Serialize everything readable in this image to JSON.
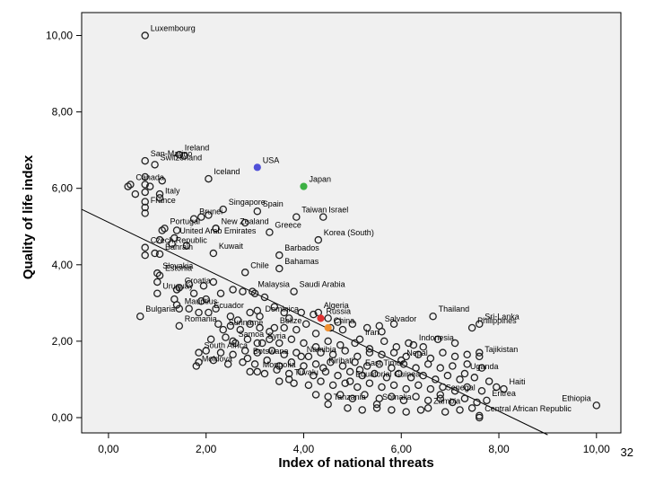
{
  "slide_number": "32",
  "chart_data": {
    "type": "scatter",
    "xlabel": "Index of national threats",
    "ylabel": "Quality of life index",
    "xlim": [
      -0.55,
      10.5
    ],
    "ylim": [
      -0.4,
      10.6
    ],
    "xticks": [
      0,
      2,
      4,
      6,
      8,
      10
    ],
    "yticks": [
      0,
      2,
      4,
      6,
      8,
      10
    ],
    "xtick_labels": [
      "0,00",
      "2,00",
      "4,00",
      "6,00",
      "8,00",
      "10,00"
    ],
    "ytick_labels": [
      "0,00",
      "2,00",
      "4,00",
      "6,00",
      "8,00",
      "10,00"
    ],
    "grid": false,
    "plot_background": "#f0f0f0",
    "fit_line": {
      "start": [
        -0.55,
        5.45
      ],
      "end": [
        9.0,
        -0.45
      ]
    },
    "highlight_colors": {
      "USA": "#5050d8",
      "Japan": "#3cb043",
      "red": "#e03030",
      "orange": "#f09030"
    },
    "labeled_points": [
      {
        "name": "Luxembourg",
        "x": 0.75,
        "y": 10.0
      },
      {
        "name": "Ireland",
        "x": 1.45,
        "y": 6.88
      },
      {
        "name": "San-Marino",
        "x": 0.75,
        "y": 6.72
      },
      {
        "name": "Switzerland",
        "x": 0.95,
        "y": 6.62
      },
      {
        "name": "Iceland",
        "x": 2.05,
        "y": 6.25
      },
      {
        "name": "USA",
        "x": 3.05,
        "y": 6.55,
        "color": "#5050d8",
        "filled": true
      },
      {
        "name": "Japan",
        "x": 4.0,
        "y": 6.05,
        "color": "#3cb043",
        "filled": true
      },
      {
        "name": "Canada",
        "x": 0.45,
        "y": 6.1
      },
      {
        "name": "Italy",
        "x": 1.05,
        "y": 5.75
      },
      {
        "name": "France",
        "x": 0.75,
        "y": 5.5
      },
      {
        "name": "Singapore",
        "x": 2.35,
        "y": 5.45
      },
      {
        "name": "Spain",
        "x": 3.05,
        "y": 5.4
      },
      {
        "name": "Taiwan",
        "x": 3.85,
        "y": 5.25
      },
      {
        "name": "Israel",
        "x": 4.4,
        "y": 5.25
      },
      {
        "name": "Brunei",
        "x": 1.75,
        "y": 5.2
      },
      {
        "name": "New Zealand",
        "x": 2.2,
        "y": 4.95
      },
      {
        "name": "Greece",
        "x": 3.3,
        "y": 4.85
      },
      {
        "name": "Portugal",
        "x": 1.15,
        "y": 4.95
      },
      {
        "name": "United Arab Emirates",
        "x": 1.35,
        "y": 4.7
      },
      {
        "name": "Korea (South)",
        "x": 4.3,
        "y": 4.65
      },
      {
        "name": "Czech Republic",
        "x": 0.75,
        "y": 4.45
      },
      {
        "name": "Bahrain",
        "x": 1.05,
        "y": 4.28
      },
      {
        "name": "Kuwait",
        "x": 2.15,
        "y": 4.3
      },
      {
        "name": "Barbados",
        "x": 3.5,
        "y": 4.25
      },
      {
        "name": "Bahamas",
        "x": 3.5,
        "y": 3.9
      },
      {
        "name": "Slovakia",
        "x": 1.0,
        "y": 3.78
      },
      {
        "name": "Estonia",
        "x": 1.05,
        "y": 3.72
      },
      {
        "name": "Chile",
        "x": 2.8,
        "y": 3.8
      },
      {
        "name": "Croatia",
        "x": 1.45,
        "y": 3.4
      },
      {
        "name": "Saudi Arabia",
        "x": 3.8,
        "y": 3.3
      },
      {
        "name": "Uruguay",
        "x": 1.0,
        "y": 3.25
      },
      {
        "name": "Malaysia",
        "x": 2.95,
        "y": 3.3
      },
      {
        "name": "Mauritius",
        "x": 1.45,
        "y": 2.85
      },
      {
        "name": "Ecuador",
        "x": 2.05,
        "y": 2.75
      },
      {
        "name": "Algeria",
        "x": 4.3,
        "y": 2.75
      },
      {
        "name": "Russia",
        "x": 4.35,
        "y": 2.6,
        "color": "#e03030",
        "filled": true
      },
      {
        "name": "Thailand",
        "x": 6.65,
        "y": 2.65
      },
      {
        "name": "Sri-Lanka",
        "x": 7.6,
        "y": 2.45
      },
      {
        "name": "Dominica",
        "x": 3.1,
        "y": 2.65
      },
      {
        "name": "Bulgaria",
        "x": 0.65,
        "y": 2.65
      },
      {
        "name": "Romania",
        "x": 1.45,
        "y": 2.4
      },
      {
        "name": "Belize",
        "x": 3.4,
        "y": 2.35
      },
      {
        "name": "China",
        "x": 4.5,
        "y": 2.35,
        "color": "#f09030",
        "filled": true
      },
      {
        "name": "Salvador",
        "x": 5.55,
        "y": 2.4
      },
      {
        "name": "Suriname",
        "x": 2.35,
        "y": 2.3
      },
      {
        "name": "Iran",
        "x": 5.15,
        "y": 2.05
      },
      {
        "name": "Indonesia",
        "x": 6.25,
        "y": 1.9
      },
      {
        "name": "Philippines",
        "x": 7.45,
        "y": 2.35
      },
      {
        "name": "Samoa",
        "x": 2.55,
        "y": 2.0
      },
      {
        "name": "Syria",
        "x": 3.15,
        "y": 1.95
      },
      {
        "name": "South Africa",
        "x": 1.85,
        "y": 1.7
      },
      {
        "name": "Namibia",
        "x": 3.95,
        "y": 1.6
      },
      {
        "name": "Tajikistan",
        "x": 7.6,
        "y": 1.6
      },
      {
        "name": "Botswana",
        "x": 2.85,
        "y": 1.55
      },
      {
        "name": "Nepal",
        "x": 6.0,
        "y": 1.5
      },
      {
        "name": "Moldova",
        "x": 1.8,
        "y": 1.35
      },
      {
        "name": "Kiribati",
        "x": 4.4,
        "y": 1.3
      },
      {
        "name": "East Timor",
        "x": 5.15,
        "y": 1.25
      },
      {
        "name": "Mongolia",
        "x": 3.05,
        "y": 1.2
      },
      {
        "name": "Uganda",
        "x": 7.3,
        "y": 1.15
      },
      {
        "name": "Tuvalu",
        "x": 3.7,
        "y": 1.0
      },
      {
        "name": "Equatorial Guinea",
        "x": 4.95,
        "y": 0.95
      },
      {
        "name": "Haiti",
        "x": 8.1,
        "y": 0.75
      },
      {
        "name": "Senegal",
        "x": 6.8,
        "y": 0.6
      },
      {
        "name": "Ethiopia",
        "x": 10.0,
        "y": 0.32
      },
      {
        "name": "Eritrea",
        "x": 7.75,
        "y": 0.45
      },
      {
        "name": "Tanzania",
        "x": 4.5,
        "y": 0.35
      },
      {
        "name": "Somalia",
        "x": 5.5,
        "y": 0.35
      },
      {
        "name": "Zambia",
        "x": 6.55,
        "y": 0.25
      },
      {
        "name": "Central African Republic",
        "x": 7.6,
        "y": 0.05
      }
    ],
    "unlabeled_points": [
      [
        0.75,
        6.3
      ],
      [
        0.75,
        6.1
      ],
      [
        0.75,
        5.9
      ],
      [
        0.4,
        6.05
      ],
      [
        0.55,
        5.85
      ],
      [
        0.75,
        5.65
      ],
      [
        0.85,
        6.05
      ],
      [
        1.1,
        6.2
      ],
      [
        1.05,
        5.85
      ],
      [
        0.75,
        5.35
      ],
      [
        1.55,
        6.85
      ],
      [
        2.05,
        5.3
      ],
      [
        1.9,
        5.25
      ],
      [
        1.1,
        4.9
      ],
      [
        1.4,
        4.9
      ],
      [
        1.05,
        4.65
      ],
      [
        0.75,
        4.25
      ],
      [
        1.3,
        4.55
      ],
      [
        1.6,
        4.5
      ],
      [
        2.2,
        4.95
      ],
      [
        2.8,
        5.1
      ],
      [
        0.95,
        4.3
      ],
      [
        2.15,
        3.55
      ],
      [
        1.95,
        3.45
      ],
      [
        1.4,
        3.35
      ],
      [
        1.0,
        3.55
      ],
      [
        1.65,
        3.5
      ],
      [
        1.75,
        3.25
      ],
      [
        1.35,
        3.1
      ],
      [
        1.9,
        3.05
      ],
      [
        2.0,
        3.1
      ],
      [
        2.3,
        3.25
      ],
      [
        2.55,
        3.35
      ],
      [
        2.75,
        3.3
      ],
      [
        3.0,
        3.25
      ],
      [
        3.2,
        3.15
      ],
      [
        1.4,
        2.95
      ],
      [
        1.65,
        2.85
      ],
      [
        1.85,
        2.75
      ],
      [
        2.2,
        2.85
      ],
      [
        2.5,
        2.65
      ],
      [
        2.65,
        2.55
      ],
      [
        2.9,
        2.75
      ],
      [
        3.05,
        2.8
      ],
      [
        3.4,
        2.9
      ],
      [
        3.6,
        2.75
      ],
      [
        3.7,
        2.6
      ],
      [
        3.95,
        2.75
      ],
      [
        4.2,
        2.7
      ],
      [
        4.5,
        2.6
      ],
      [
        4.7,
        2.5
      ],
      [
        2.25,
        2.45
      ],
      [
        2.5,
        2.4
      ],
      [
        2.7,
        2.3
      ],
      [
        2.9,
        2.45
      ],
      [
        3.1,
        2.35
      ],
      [
        3.3,
        2.25
      ],
      [
        3.6,
        2.35
      ],
      [
        3.85,
        2.3
      ],
      [
        4.05,
        2.45
      ],
      [
        4.25,
        2.2
      ],
      [
        4.55,
        2.35
      ],
      [
        4.8,
        2.3
      ],
      [
        5.0,
        2.45
      ],
      [
        5.3,
        2.35
      ],
      [
        5.6,
        2.25
      ],
      [
        5.85,
        2.45
      ],
      [
        2.1,
        2.05
      ],
      [
        2.4,
        2.1
      ],
      [
        2.6,
        1.95
      ],
      [
        2.85,
        2.05
      ],
      [
        3.05,
        1.95
      ],
      [
        3.3,
        2.05
      ],
      [
        3.5,
        1.95
      ],
      [
        3.75,
        2.05
      ],
      [
        4.0,
        1.95
      ],
      [
        4.25,
        1.85
      ],
      [
        4.5,
        2.0
      ],
      [
        4.75,
        1.9
      ],
      [
        5.05,
        1.95
      ],
      [
        5.35,
        1.8
      ],
      [
        5.65,
        2.0
      ],
      [
        5.9,
        1.85
      ],
      [
        6.15,
        1.95
      ],
      [
        6.45,
        1.85
      ],
      [
        6.75,
        2.05
      ],
      [
        7.1,
        1.95
      ],
      [
        2.0,
        1.75
      ],
      [
        2.3,
        1.7
      ],
      [
        2.55,
        1.65
      ],
      [
        2.8,
        1.75
      ],
      [
        3.05,
        1.7
      ],
      [
        3.35,
        1.75
      ],
      [
        3.6,
        1.65
      ],
      [
        3.85,
        1.7
      ],
      [
        4.1,
        1.6
      ],
      [
        4.35,
        1.7
      ],
      [
        4.6,
        1.65
      ],
      [
        4.85,
        1.75
      ],
      [
        5.1,
        1.6
      ],
      [
        5.35,
        1.7
      ],
      [
        5.6,
        1.65
      ],
      [
        5.85,
        1.7
      ],
      [
        6.1,
        1.6
      ],
      [
        6.35,
        1.65
      ],
      [
        6.6,
        1.55
      ],
      [
        6.85,
        1.7
      ],
      [
        7.1,
        1.6
      ],
      [
        7.35,
        1.65
      ],
      [
        7.6,
        1.7
      ],
      [
        1.85,
        1.45
      ],
      [
        2.15,
        1.5
      ],
      [
        2.45,
        1.4
      ],
      [
        2.75,
        1.45
      ],
      [
        3.0,
        1.4
      ],
      [
        3.25,
        1.5
      ],
      [
        3.5,
        1.35
      ],
      [
        3.75,
        1.45
      ],
      [
        4.0,
        1.35
      ],
      [
        4.25,
        1.4
      ],
      [
        4.55,
        1.45
      ],
      [
        4.8,
        1.35
      ],
      [
        5.05,
        1.45
      ],
      [
        5.3,
        1.35
      ],
      [
        5.55,
        1.4
      ],
      [
        5.8,
        1.3
      ],
      [
        6.05,
        1.4
      ],
      [
        6.3,
        1.3
      ],
      [
        6.55,
        1.4
      ],
      [
        6.8,
        1.3
      ],
      [
        7.05,
        1.35
      ],
      [
        7.35,
        1.4
      ],
      [
        7.65,
        1.3
      ],
      [
        2.9,
        1.2
      ],
      [
        3.2,
        1.15
      ],
      [
        3.45,
        1.25
      ],
      [
        3.7,
        1.15
      ],
      [
        3.95,
        1.2
      ],
      [
        4.2,
        1.1
      ],
      [
        4.45,
        1.2
      ],
      [
        4.7,
        1.1
      ],
      [
        4.95,
        1.2
      ],
      [
        5.2,
        1.1
      ],
      [
        5.45,
        1.15
      ],
      [
        5.7,
        1.05
      ],
      [
        5.95,
        1.15
      ],
      [
        6.2,
        1.05
      ],
      [
        6.45,
        1.1
      ],
      [
        6.7,
        1.0
      ],
      [
        6.95,
        1.1
      ],
      [
        7.2,
        1.0
      ],
      [
        7.5,
        1.05
      ],
      [
        7.8,
        0.95
      ],
      [
        3.5,
        0.95
      ],
      [
        3.8,
        0.9
      ],
      [
        4.1,
        0.85
      ],
      [
        4.35,
        0.95
      ],
      [
        4.6,
        0.85
      ],
      [
        4.85,
        0.9
      ],
      [
        5.1,
        0.8
      ],
      [
        5.35,
        0.9
      ],
      [
        5.6,
        0.8
      ],
      [
        5.85,
        0.85
      ],
      [
        6.1,
        0.75
      ],
      [
        6.35,
        0.85
      ],
      [
        6.6,
        0.75
      ],
      [
        6.85,
        0.8
      ],
      [
        7.1,
        0.7
      ],
      [
        7.35,
        0.8
      ],
      [
        7.65,
        0.7
      ],
      [
        7.95,
        0.8
      ],
      [
        4.25,
        0.6
      ],
      [
        4.5,
        0.55
      ],
      [
        4.75,
        0.6
      ],
      [
        5.0,
        0.5
      ],
      [
        5.25,
        0.6
      ],
      [
        5.55,
        0.5
      ],
      [
        5.8,
        0.55
      ],
      [
        6.05,
        0.45
      ],
      [
        6.3,
        0.55
      ],
      [
        6.55,
        0.45
      ],
      [
        6.8,
        0.5
      ],
      [
        7.05,
        0.4
      ],
      [
        7.3,
        0.5
      ],
      [
        7.55,
        0.4
      ],
      [
        4.9,
        0.25
      ],
      [
        5.2,
        0.2
      ],
      [
        5.5,
        0.25
      ],
      [
        5.8,
        0.2
      ],
      [
        6.1,
        0.15
      ],
      [
        6.4,
        0.2
      ],
      [
        6.9,
        0.15
      ],
      [
        7.2,
        0.2
      ],
      [
        7.45,
        0.25
      ],
      [
        7.6,
        0.0
      ]
    ]
  }
}
